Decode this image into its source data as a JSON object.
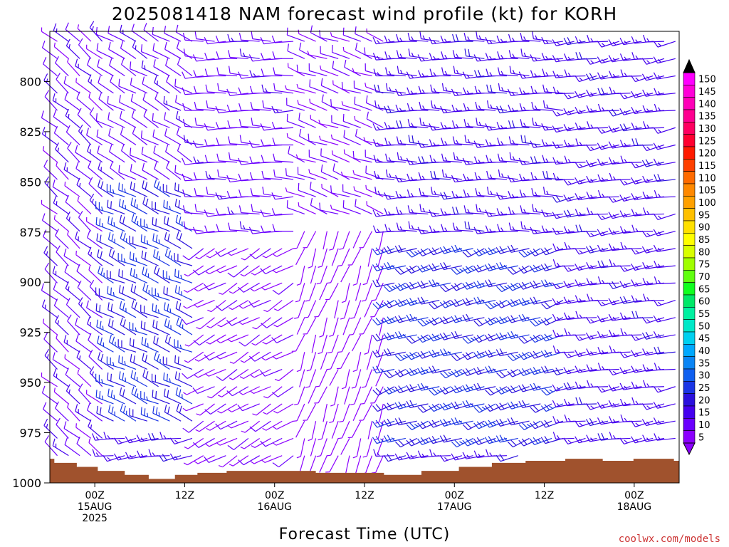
{
  "title": "2025081418 NAM forecast wind profile (kt) for KORH",
  "xlabel": "Forecast Time (UTC)",
  "credit": "coolwx.com/models",
  "colors": {
    "terrain": "#a0522d",
    "barb_slow": "#8a2be2",
    "barb_fast": "#1f3fe0"
  },
  "chart_data": {
    "type": "wind_barb_time_height",
    "x_ticks": [
      {
        "hour": 6,
        "lines": [
          "00Z",
          "15AUG",
          "2025"
        ]
      },
      {
        "hour": 18,
        "lines": [
          "12Z"
        ]
      },
      {
        "hour": 30,
        "lines": [
          "00Z",
          "16AUG"
        ]
      },
      {
        "hour": 42,
        "lines": [
          "12Z"
        ]
      },
      {
        "hour": 54,
        "lines": [
          "00Z",
          "17AUG"
        ]
      },
      {
        "hour": 66,
        "lines": [
          "12Z"
        ]
      },
      {
        "hour": 78,
        "lines": [
          "00Z",
          "18AUG"
        ]
      }
    ],
    "xlim": [
      0,
      84
    ],
    "y_ticks": [
      800,
      825,
      850,
      875,
      900,
      925,
      950,
      975,
      1000
    ],
    "ylim": [
      775,
      1000
    ],
    "colorbar": {
      "values": [
        5,
        10,
        15,
        20,
        25,
        30,
        35,
        40,
        45,
        50,
        55,
        60,
        65,
        70,
        75,
        80,
        85,
        90,
        95,
        100,
        105,
        110,
        115,
        120,
        125,
        130,
        135,
        140,
        145,
        150
      ],
      "colors": [
        "#8b00ff",
        "#6a00ff",
        "#4400ee",
        "#2a10dd",
        "#1a35e5",
        "#1060f0",
        "#0a85f5",
        "#00a8ff",
        "#00d0f0",
        "#00e8c8",
        "#00f0a0",
        "#00e868",
        "#10ff20",
        "#60ff10",
        "#a0ff00",
        "#d8ff00",
        "#ffff00",
        "#ffe000",
        "#ffc000",
        "#ffa000",
        "#ff8800",
        "#ff6a00",
        "#ff4000",
        "#ff1a00",
        "#ff0030",
        "#ff0060",
        "#ff0090",
        "#ff00b8",
        "#ff00d8",
        "#ff00ff"
      ]
    },
    "surface_pressure": [
      [
        0,
        988
      ],
      [
        0.6,
        990
      ],
      [
        3.6,
        992
      ],
      [
        6.4,
        994
      ],
      [
        10,
        996
      ],
      [
        13.2,
        998
      ],
      [
        16.7,
        996
      ],
      [
        19.7,
        995
      ],
      [
        23.6,
        994
      ],
      [
        29.6,
        994
      ],
      [
        35.5,
        995
      ],
      [
        44.6,
        996
      ],
      [
        49.6,
        994
      ],
      [
        54.6,
        992
      ],
      [
        59,
        990
      ],
      [
        63.5,
        989
      ],
      [
        68.8,
        988
      ],
      [
        73.8,
        989
      ],
      [
        77.9,
        988
      ],
      [
        83.3,
        989
      ],
      [
        84,
        989
      ]
    ],
    "wind_regimes": [
      {
        "hours": [
          0,
          8
        ],
        "levels": [
          775,
          1000
        ],
        "direction_from": 310,
        "speed_kt": [
          8,
          18
        ]
      },
      {
        "hours": [
          8,
          20
        ],
        "levels": [
          850,
          975
        ],
        "direction_from": 295,
        "speed_kt": [
          20,
          30
        ]
      },
      {
        "hours": [
          8,
          20
        ],
        "levels": [
          775,
          850
        ],
        "direction_from": 300,
        "speed_kt": [
          10,
          15
        ]
      },
      {
        "hours": [
          20,
          34
        ],
        "levels": [
          775,
          880
        ],
        "direction_from": 270,
        "speed_kt": [
          10,
          15
        ]
      },
      {
        "hours": [
          20,
          34
        ],
        "levels": [
          880,
          1000
        ],
        "direction_from": 240,
        "speed_kt": [
          5,
          12
        ]
      },
      {
        "hours": [
          34,
          46
        ],
        "levels": [
          775,
          870
        ],
        "direction_from": 290,
        "speed_kt": [
          8,
          12
        ]
      },
      {
        "hours": [
          34,
          46
        ],
        "levels": [
          870,
          1000
        ],
        "direction_from": 200,
        "speed_kt": [
          3,
          8
        ]
      },
      {
        "hours": [
          46,
          70
        ],
        "levels": [
          775,
          875
        ],
        "direction_from": 270,
        "speed_kt": [
          15,
          20
        ]
      },
      {
        "hours": [
          46,
          70
        ],
        "levels": [
          875,
          980
        ],
        "direction_from": 250,
        "speed_kt": [
          20,
          30
        ]
      },
      {
        "hours": [
          70,
          84
        ],
        "levels": [
          775,
          1000
        ],
        "direction_from": 260,
        "speed_kt": [
          15,
          20
        ]
      }
    ]
  }
}
